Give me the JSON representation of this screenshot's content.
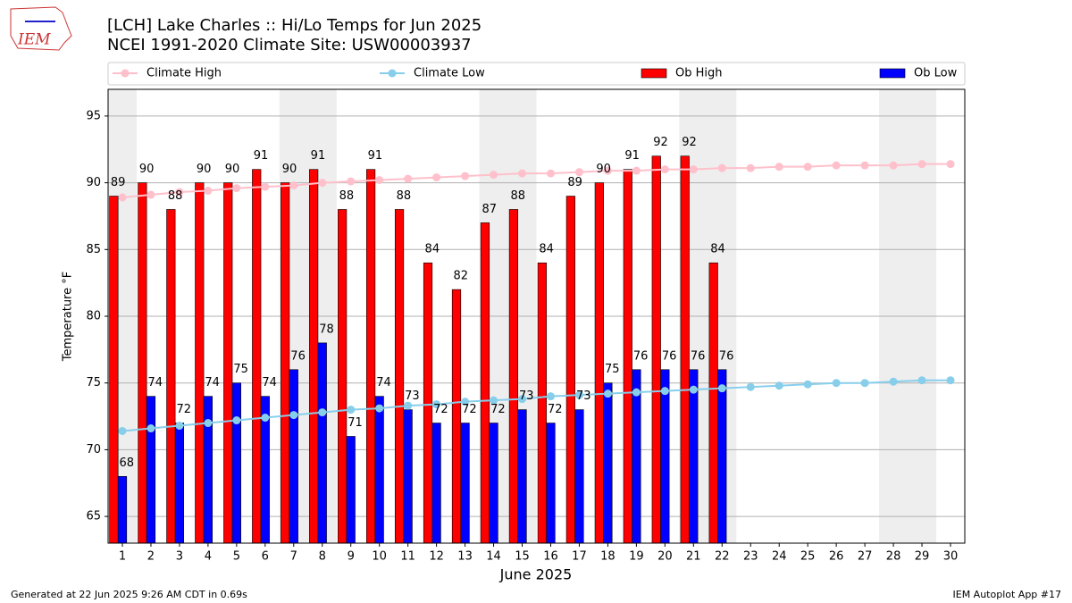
{
  "chart_data": {
    "type": "bar",
    "title": "[LCH] Lake Charles :: Hi/Lo Temps for Jun 2025",
    "subtitle": "NCEI 1991-2020 Climate Site: USW00003937",
    "logo_text": "IEM",
    "xlabel": "June 2025",
    "ylabel": "Temperature °F",
    "footer_left": "Generated at 22 Jun 2025 9:26 AM CDT in 0.69s",
    "footer_right": "IEM Autoplot App #17",
    "x": [
      1,
      2,
      3,
      4,
      5,
      6,
      7,
      8,
      9,
      10,
      11,
      12,
      13,
      14,
      15,
      16,
      17,
      18,
      19,
      20,
      21,
      22,
      23,
      24,
      25,
      26,
      27,
      28,
      29,
      30
    ],
    "xlim": [
      0.5,
      30.5
    ],
    "xticks": [
      1,
      2,
      3,
      4,
      5,
      6,
      7,
      8,
      9,
      10,
      11,
      12,
      13,
      14,
      15,
      16,
      17,
      18,
      19,
      20,
      21,
      22,
      23,
      24,
      25,
      26,
      27,
      28,
      29,
      30
    ],
    "ylim": [
      63,
      97
    ],
    "yticks": [
      65,
      70,
      75,
      80,
      85,
      90,
      95
    ],
    "grid": true,
    "shaded_x_ranges": [
      [
        0.5,
        1.5
      ],
      [
        6.5,
        8.5
      ],
      [
        13.5,
        15.5
      ],
      [
        20.5,
        22.5
      ],
      [
        27.5,
        29.5
      ]
    ],
    "shade_color": "#eeeeee",
    "series": [
      {
        "name": "Climate High",
        "kind": "line",
        "color": "#ffc0cb",
        "values": [
          88.9,
          89.1,
          89.3,
          89.4,
          89.6,
          89.7,
          89.8,
          90.0,
          90.1,
          90.2,
          90.3,
          90.4,
          90.5,
          90.6,
          90.7,
          90.7,
          90.8,
          90.9,
          90.9,
          91.0,
          91.0,
          91.1,
          91.1,
          91.2,
          91.2,
          91.3,
          91.3,
          91.3,
          91.4,
          91.4
        ]
      },
      {
        "name": "Climate Low",
        "kind": "line",
        "color": "#87ceeb",
        "values": [
          71.4,
          71.6,
          71.8,
          72.0,
          72.2,
          72.4,
          72.6,
          72.8,
          73.0,
          73.1,
          73.3,
          73.4,
          73.6,
          73.7,
          73.8,
          74.0,
          74.1,
          74.2,
          74.3,
          74.4,
          74.5,
          74.6,
          74.7,
          74.8,
          74.9,
          75.0,
          75.0,
          75.1,
          75.2,
          75.2
        ]
      },
      {
        "name": "Ob High",
        "kind": "bar",
        "color": "#ff0000",
        "offset": -0.45,
        "width": 0.3,
        "values": [
          89,
          90,
          88,
          90,
          90,
          91,
          90,
          91,
          88,
          91,
          88,
          84,
          82,
          87,
          88,
          84,
          89,
          90,
          91,
          92,
          92,
          84,
          null,
          null,
          null,
          null,
          null,
          null,
          null,
          null
        ]
      },
      {
        "name": "Ob Low",
        "kind": "bar",
        "color": "#0000ff",
        "offset": -0.15,
        "width": 0.3,
        "values": [
          68,
          74,
          72,
          74,
          75,
          74,
          76,
          78,
          71,
          74,
          73,
          72,
          72,
          72,
          73,
          72,
          73,
          75,
          76,
          76,
          76,
          76,
          null,
          null,
          null,
          null,
          null,
          null,
          null,
          null
        ]
      }
    ]
  }
}
